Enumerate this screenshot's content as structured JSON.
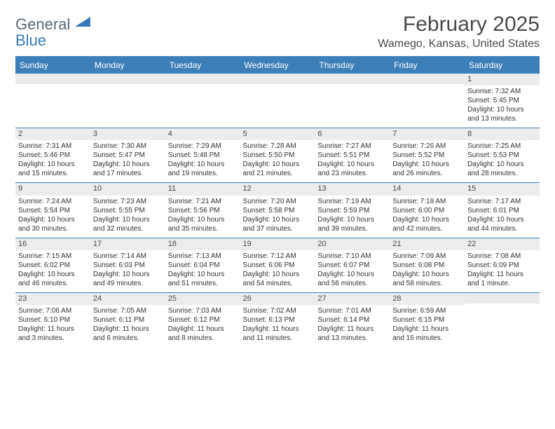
{
  "logo": {
    "word1": "General",
    "word2": "Blue"
  },
  "title": "February 2025",
  "location": "Wamego, Kansas, United States",
  "days_of_week": [
    "Sunday",
    "Monday",
    "Tuesday",
    "Wednesday",
    "Thursday",
    "Friday",
    "Saturday"
  ],
  "colors": {
    "header_bar": "#3d7fb8",
    "daynum_bg": "#ececec",
    "text": "#333333",
    "logo_gray": "#5a6a78",
    "logo_blue": "#3a7ab8",
    "background": "#ffffff"
  },
  "weeks": [
    [
      null,
      null,
      null,
      null,
      null,
      null,
      {
        "n": "1",
        "sunrise": "Sunrise: 7:32 AM",
        "sunset": "Sunset: 5:45 PM",
        "daylight": "Daylight: 10 hours and 13 minutes."
      }
    ],
    [
      {
        "n": "2",
        "sunrise": "Sunrise: 7:31 AM",
        "sunset": "Sunset: 5:46 PM",
        "daylight": "Daylight: 10 hours and 15 minutes."
      },
      {
        "n": "3",
        "sunrise": "Sunrise: 7:30 AM",
        "sunset": "Sunset: 5:47 PM",
        "daylight": "Daylight: 10 hours and 17 minutes."
      },
      {
        "n": "4",
        "sunrise": "Sunrise: 7:29 AM",
        "sunset": "Sunset: 5:48 PM",
        "daylight": "Daylight: 10 hours and 19 minutes."
      },
      {
        "n": "5",
        "sunrise": "Sunrise: 7:28 AM",
        "sunset": "Sunset: 5:50 PM",
        "daylight": "Daylight: 10 hours and 21 minutes."
      },
      {
        "n": "6",
        "sunrise": "Sunrise: 7:27 AM",
        "sunset": "Sunset: 5:51 PM",
        "daylight": "Daylight: 10 hours and 23 minutes."
      },
      {
        "n": "7",
        "sunrise": "Sunrise: 7:26 AM",
        "sunset": "Sunset: 5:52 PM",
        "daylight": "Daylight: 10 hours and 26 minutes."
      },
      {
        "n": "8",
        "sunrise": "Sunrise: 7:25 AM",
        "sunset": "Sunset: 5:53 PM",
        "daylight": "Daylight: 10 hours and 28 minutes."
      }
    ],
    [
      {
        "n": "9",
        "sunrise": "Sunrise: 7:24 AM",
        "sunset": "Sunset: 5:54 PM",
        "daylight": "Daylight: 10 hours and 30 minutes."
      },
      {
        "n": "10",
        "sunrise": "Sunrise: 7:23 AM",
        "sunset": "Sunset: 5:55 PM",
        "daylight": "Daylight: 10 hours and 32 minutes."
      },
      {
        "n": "11",
        "sunrise": "Sunrise: 7:21 AM",
        "sunset": "Sunset: 5:56 PM",
        "daylight": "Daylight: 10 hours and 35 minutes."
      },
      {
        "n": "12",
        "sunrise": "Sunrise: 7:20 AM",
        "sunset": "Sunset: 5:58 PM",
        "daylight": "Daylight: 10 hours and 37 minutes."
      },
      {
        "n": "13",
        "sunrise": "Sunrise: 7:19 AM",
        "sunset": "Sunset: 5:59 PM",
        "daylight": "Daylight: 10 hours and 39 minutes."
      },
      {
        "n": "14",
        "sunrise": "Sunrise: 7:18 AM",
        "sunset": "Sunset: 6:00 PM",
        "daylight": "Daylight: 10 hours and 42 minutes."
      },
      {
        "n": "15",
        "sunrise": "Sunrise: 7:17 AM",
        "sunset": "Sunset: 6:01 PM",
        "daylight": "Daylight: 10 hours and 44 minutes."
      }
    ],
    [
      {
        "n": "16",
        "sunrise": "Sunrise: 7:15 AM",
        "sunset": "Sunset: 6:02 PM",
        "daylight": "Daylight: 10 hours and 46 minutes."
      },
      {
        "n": "17",
        "sunrise": "Sunrise: 7:14 AM",
        "sunset": "Sunset: 6:03 PM",
        "daylight": "Daylight: 10 hours and 49 minutes."
      },
      {
        "n": "18",
        "sunrise": "Sunrise: 7:13 AM",
        "sunset": "Sunset: 6:04 PM",
        "daylight": "Daylight: 10 hours and 51 minutes."
      },
      {
        "n": "19",
        "sunrise": "Sunrise: 7:12 AM",
        "sunset": "Sunset: 6:06 PM",
        "daylight": "Daylight: 10 hours and 54 minutes."
      },
      {
        "n": "20",
        "sunrise": "Sunrise: 7:10 AM",
        "sunset": "Sunset: 6:07 PM",
        "daylight": "Daylight: 10 hours and 56 minutes."
      },
      {
        "n": "21",
        "sunrise": "Sunrise: 7:09 AM",
        "sunset": "Sunset: 6:08 PM",
        "daylight": "Daylight: 10 hours and 58 minutes."
      },
      {
        "n": "22",
        "sunrise": "Sunrise: 7:08 AM",
        "sunset": "Sunset: 6:09 PM",
        "daylight": "Daylight: 11 hours and 1 minute."
      }
    ],
    [
      {
        "n": "23",
        "sunrise": "Sunrise: 7:06 AM",
        "sunset": "Sunset: 6:10 PM",
        "daylight": "Daylight: 11 hours and 3 minutes."
      },
      {
        "n": "24",
        "sunrise": "Sunrise: 7:05 AM",
        "sunset": "Sunset: 6:11 PM",
        "daylight": "Daylight: 11 hours and 6 minutes."
      },
      {
        "n": "25",
        "sunrise": "Sunrise: 7:03 AM",
        "sunset": "Sunset: 6:12 PM",
        "daylight": "Daylight: 11 hours and 8 minutes."
      },
      {
        "n": "26",
        "sunrise": "Sunrise: 7:02 AM",
        "sunset": "Sunset: 6:13 PM",
        "daylight": "Daylight: 11 hours and 11 minutes."
      },
      {
        "n": "27",
        "sunrise": "Sunrise: 7:01 AM",
        "sunset": "Sunset: 6:14 PM",
        "daylight": "Daylight: 11 hours and 13 minutes."
      },
      {
        "n": "28",
        "sunrise": "Sunrise: 6:59 AM",
        "sunset": "Sunset: 6:15 PM",
        "daylight": "Daylight: 11 hours and 16 minutes."
      },
      null
    ]
  ]
}
